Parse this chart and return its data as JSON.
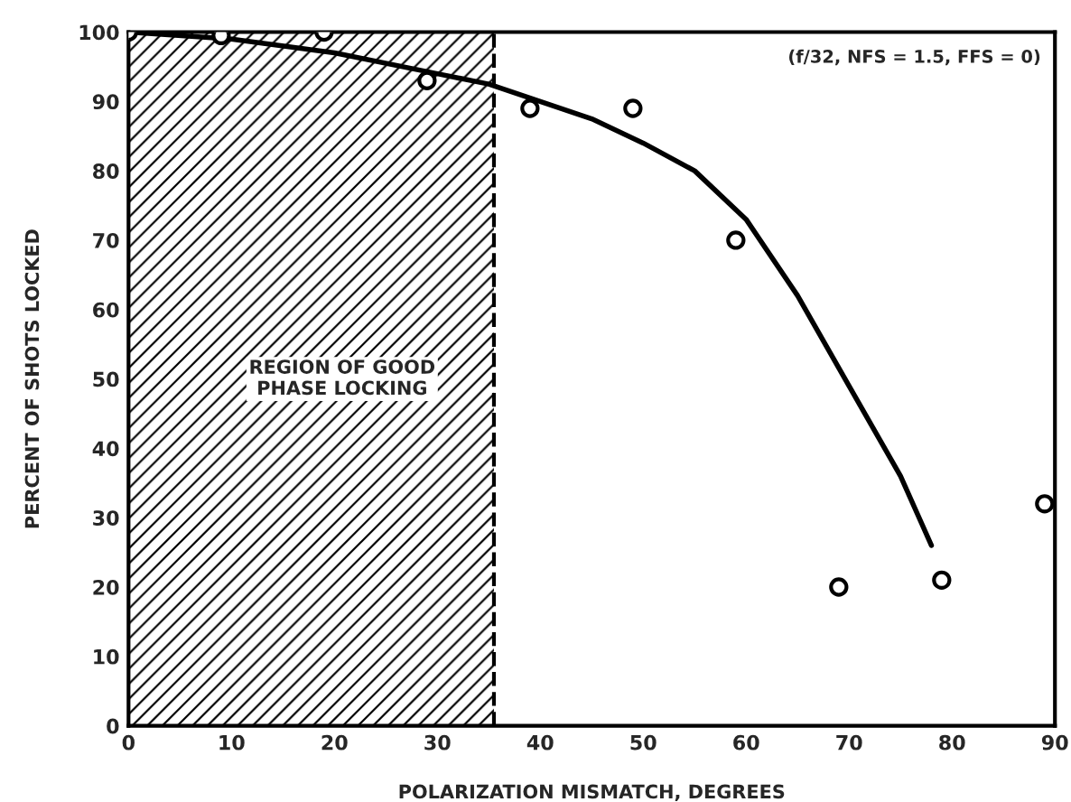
{
  "chart_data": {
    "type": "scatter",
    "xlabel": "POLARIZATION MISMATCH, DEGREES",
    "ylabel": "PERCENT OF SHOTS LOCKED",
    "xlim": [
      0,
      90
    ],
    "ylim": [
      0,
      100
    ],
    "xticks": [
      0,
      10,
      20,
      30,
      40,
      50,
      60,
      70,
      80,
      90
    ],
    "yticks": [
      0,
      10,
      20,
      30,
      40,
      50,
      60,
      70,
      80,
      90,
      100
    ],
    "grid": false,
    "series": [
      {
        "color": "#000000",
        "marker": "circle",
        "x": [
          0,
          9,
          19,
          29,
          39,
          49,
          59,
          69,
          79,
          89
        ],
        "values": [
          100,
          99.5,
          100,
          93,
          89,
          89,
          70,
          20,
          21,
          32
        ]
      },
      {
        "type": "line",
        "color": "#000000",
        "marker": "none",
        "line_style": "solid",
        "x": [
          0,
          10,
          20,
          30,
          35,
          40,
          45,
          50,
          55,
          60,
          65,
          70,
          75,
          78
        ],
        "values": [
          100,
          99,
          97,
          94,
          92.5,
          90,
          87.5,
          84,
          80,
          73,
          62,
          49,
          36,
          26
        ]
      }
    ],
    "bands": [
      {
        "axis": "x",
        "from": 0,
        "to": 35.5,
        "label": "REGION OF GOOD\nPHASE LOCKING",
        "color": "#000000"
      }
    ],
    "ref_lines": [
      {
        "axis": "x",
        "value": 35.5,
        "color": "#000000",
        "line_style": "dashed"
      }
    ],
    "annotations": [
      "(f/32, NFS = 1.5, FFS = 0)"
    ]
  }
}
